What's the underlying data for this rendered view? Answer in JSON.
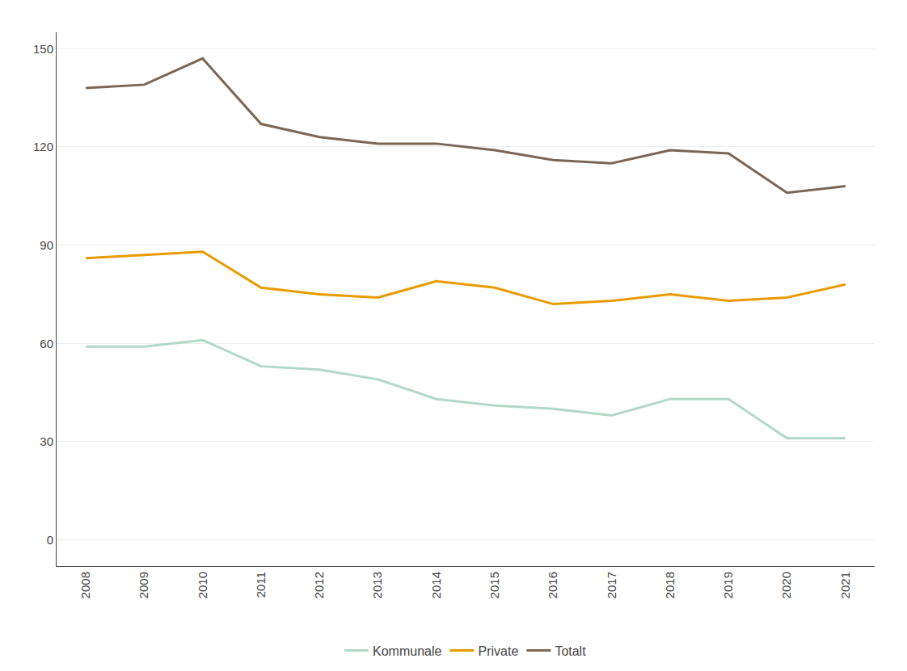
{
  "chart_data": {
    "type": "line",
    "x": [
      2008,
      2009,
      2010,
      2011,
      2012,
      2013,
      2014,
      2015,
      2016,
      2017,
      2018,
      2019,
      2020,
      2021
    ],
    "series": [
      {
        "name": "Kommunale",
        "color": "#b2d8c8",
        "values": [
          59,
          59,
          61,
          53,
          52,
          49,
          43,
          41,
          40,
          38,
          43,
          43,
          31,
          31
        ]
      },
      {
        "name": "Private",
        "color": "#e89b00",
        "values": [
          86,
          87,
          88,
          77,
          75,
          74,
          79,
          77,
          72,
          73,
          75,
          73,
          74,
          78
        ]
      },
      {
        "name": "Totalt",
        "color": "#7a6657",
        "values": [
          138,
          139,
          147,
          127,
          123,
          121,
          121,
          119,
          116,
          115,
          119,
          118,
          106,
          108
        ]
      }
    ],
    "xlim": [
      2007.5,
      2021.5
    ],
    "xticks": [
      2008,
      2009,
      2010,
      2011,
      2012,
      2013,
      2014,
      2015,
      2016,
      2017,
      2018,
      2019,
      2020,
      2021
    ],
    "ylim": [
      -8,
      155
    ],
    "yticks": [
      0,
      30,
      60,
      90,
      120,
      150
    ],
    "grid": true,
    "legend": "bottom"
  }
}
